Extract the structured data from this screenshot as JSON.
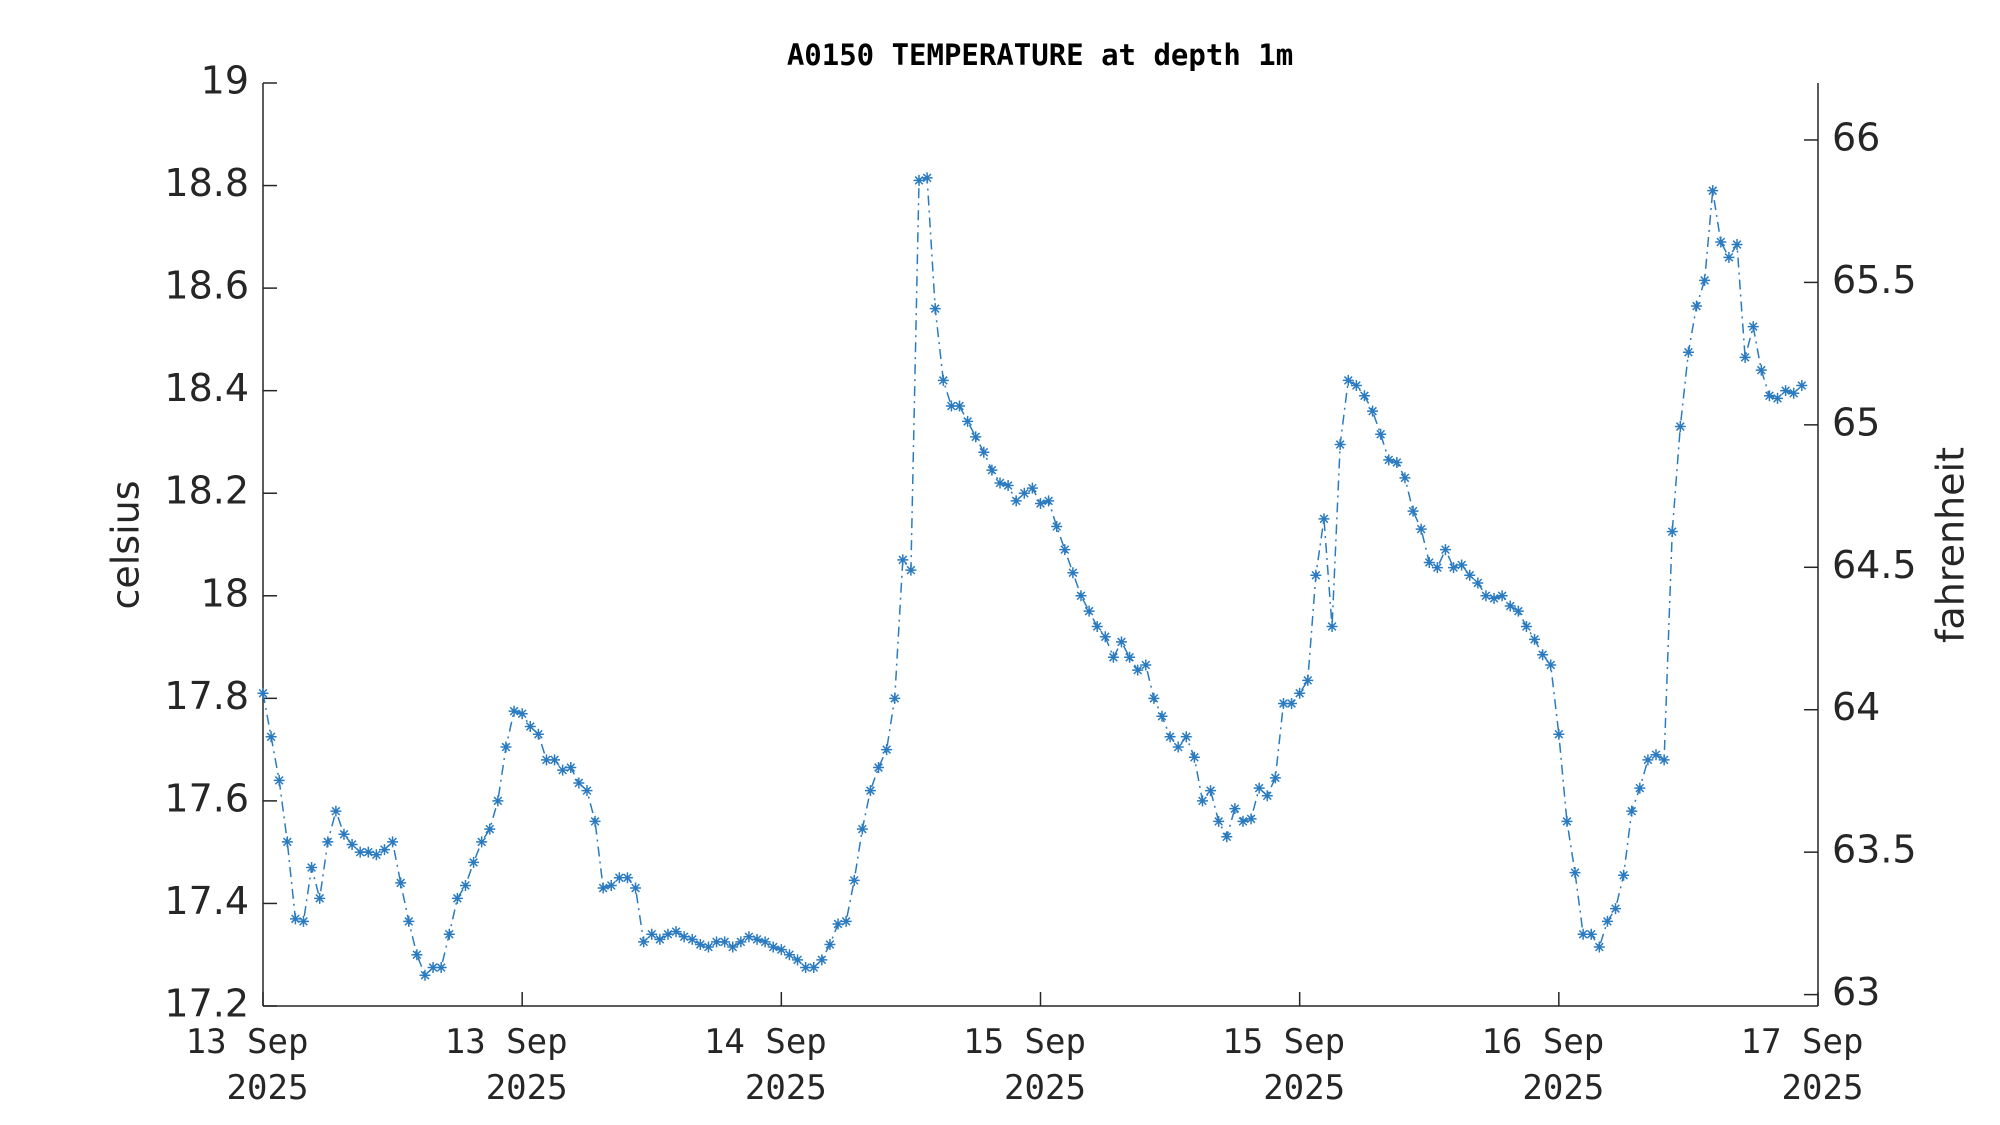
{
  "chart_data": {
    "type": "line",
    "title": "A0150 TEMPERATURE at depth 1m",
    "ylabel": "celsius",
    "y2label": "fahrenheit",
    "color": "#2b7bc0",
    "line_style": "dash-dot",
    "marker": "asterisk",
    "xlim": [
      0,
      96
    ],
    "xticks": [
      {
        "value": 0,
        "label": "13 Sep\n2025"
      },
      {
        "value": 16,
        "label": "13 Sep\n2025"
      },
      {
        "value": 32,
        "label": "14 Sep\n2025"
      },
      {
        "value": 48,
        "label": "15 Sep\n2025"
      },
      {
        "value": 64,
        "label": "15 Sep\n2025"
      },
      {
        "value": 80,
        "label": "16 Sep\n2025"
      },
      {
        "value": 96,
        "label": "17 Sep\n2025"
      }
    ],
    "ylim": [
      17.2,
      19
    ],
    "yticks": [
      17.2,
      17.4,
      17.6,
      17.8,
      18,
      18.2,
      18.4,
      18.6,
      18.8,
      19
    ],
    "y2lim": [
      62.96,
      66.2
    ],
    "y2ticks": [
      63,
      63.5,
      64,
      64.5,
      65,
      65.5,
      66
    ],
    "x": [
      0,
      0.5,
      1,
      1.5,
      2,
      2.5,
      3,
      3.5,
      4,
      4.5,
      5,
      5.5,
      6,
      6.5,
      7,
      7.5,
      8,
      8.5,
      9,
      9.5,
      10,
      10.5,
      11,
      11.5,
      12,
      12.5,
      13,
      13.5,
      14,
      14.5,
      15,
      15.5,
      16,
      16.5,
      17,
      17.5,
      18,
      18.5,
      19,
      19.5,
      20,
      20.5,
      21,
      21.5,
      22,
      22.5,
      23,
      23.5,
      24,
      24.5,
      25,
      25.5,
      26,
      26.5,
      27,
      27.5,
      28,
      28.5,
      29,
      29.5,
      30,
      30.5,
      31,
      31.5,
      32,
      32.5,
      33,
      33.5,
      34,
      34.5,
      35,
      35.5,
      36,
      36.5,
      37,
      37.5,
      38,
      38.5,
      39,
      39.5,
      40,
      40.5,
      41,
      41.5,
      42,
      42.5,
      43,
      43.5,
      44,
      44.5,
      45,
      45.5,
      46,
      46.5,
      47,
      47.5,
      48,
      48.5,
      49,
      49.5,
      50,
      50.5,
      51,
      51.5,
      52,
      52.5,
      53,
      53.5,
      54,
      54.5,
      55,
      55.5,
      56,
      56.5,
      57,
      57.5,
      58,
      58.5,
      59,
      59.5,
      60,
      60.5,
      61,
      61.5,
      62,
      62.5,
      63,
      63.5,
      64,
      64.5,
      65,
      65.5,
      66,
      66.5,
      67,
      67.5,
      68,
      68.5,
      69,
      69.5,
      70,
      70.5,
      71,
      71.5,
      72,
      72.5,
      73,
      73.5,
      74,
      74.5,
      75,
      75.5,
      76,
      76.5,
      77,
      77.5,
      78,
      78.5,
      79,
      79.5,
      80,
      80.5,
      81,
      81.5,
      82,
      82.5,
      83,
      83.5,
      84,
      84.5,
      85,
      85.5,
      86,
      86.5,
      87,
      87.5,
      88,
      88.5,
      89,
      89.5,
      90,
      90.5,
      91,
      91.5,
      92,
      92.5,
      93,
      93.5,
      94,
      94.5,
      95
    ],
    "values": [
      17.81,
      17.725,
      17.64,
      17.52,
      17.37,
      17.365,
      17.47,
      17.41,
      17.52,
      17.58,
      17.535,
      17.515,
      17.5,
      17.5,
      17.495,
      17.505,
      17.52,
      17.44,
      17.365,
      17.3,
      17.26,
      17.275,
      17.275,
      17.34,
      17.41,
      17.435,
      17.48,
      17.52,
      17.545,
      17.6,
      17.705,
      17.775,
      17.77,
      17.745,
      17.73,
      17.68,
      17.68,
      17.66,
      17.665,
      17.635,
      17.62,
      17.56,
      17.43,
      17.435,
      17.45,
      17.45,
      17.43,
      17.325,
      17.34,
      17.33,
      17.34,
      17.345,
      17.335,
      17.33,
      17.32,
      17.315,
      17.325,
      17.325,
      17.315,
      17.325,
      17.335,
      17.33,
      17.325,
      17.315,
      17.31,
      17.3,
      17.29,
      17.275,
      17.275,
      17.29,
      17.32,
      17.36,
      17.365,
      17.445,
      17.545,
      17.62,
      17.665,
      17.7,
      17.8,
      18.07,
      18.05,
      18.81,
      18.815,
      18.56,
      18.42,
      18.37,
      18.37,
      18.34,
      18.31,
      18.28,
      18.245,
      18.22,
      18.215,
      18.185,
      18.2,
      18.21,
      18.18,
      18.185,
      18.135,
      18.09,
      18.045,
      18,
      17.97,
      17.94,
      17.92,
      17.88,
      17.91,
      17.88,
      17.855,
      17.865,
      17.8,
      17.765,
      17.725,
      17.705,
      17.725,
      17.685,
      17.6,
      17.62,
      17.56,
      17.53,
      17.585,
      17.56,
      17.565,
      17.625,
      17.61,
      17.645,
      17.79,
      17.79,
      17.81,
      17.835,
      18.04,
      18.15,
      17.94,
      18.295,
      18.42,
      18.41,
      18.39,
      18.36,
      18.315,
      18.265,
      18.26,
      18.23,
      18.165,
      18.13,
      18.065,
      18.055,
      18.09,
      18.055,
      18.06,
      18.04,
      18.025,
      18,
      17.995,
      18,
      17.98,
      17.97,
      17.94,
      17.915,
      17.885,
      17.865,
      17.73,
      17.56,
      17.46,
      17.34,
      17.34,
      17.315,
      17.365,
      17.39,
      17.455,
      17.58,
      17.625,
      17.68,
      17.69,
      17.68,
      18.125,
      18.33,
      18.475,
      18.565,
      18.615,
      18.79,
      18.69,
      18.66,
      18.685,
      18.465,
      18.525,
      18.44,
      18.39,
      18.385,
      18.4,
      18.395,
      18.41
    ]
  }
}
